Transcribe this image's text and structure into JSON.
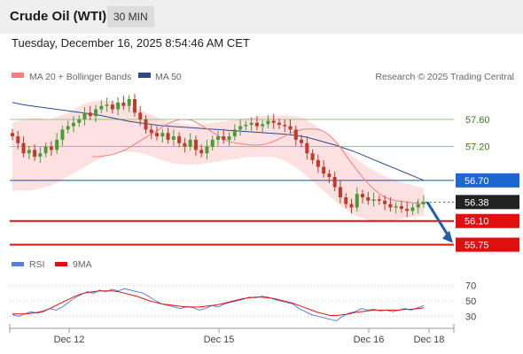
{
  "header": {
    "title": "Crude Oil (WTI)",
    "timeframe": "30 MIN"
  },
  "datetime": "Tuesday, December 16, 2025 8:54:46 AM CET",
  "legend": {
    "ma20_label": "MA 20 + Bollinger Bands",
    "ma50_label": "MA 50",
    "ma20_color": "#f08080",
    "ma50_color": "#2e4a8a",
    "copyright": "Research © 2025 Trading Central"
  },
  "colors": {
    "bullish": "#4a9a3a",
    "bearish": "#c0392b",
    "band_fill": "#fde0e0",
    "resistance_line": "#8cc070",
    "pivot_line": "#1e66d0",
    "support_line": "#e01010",
    "last_price": "#222222",
    "arrow": "#245ea8",
    "rsi_line": "#5b7fd8",
    "rsi_ma_line": "#e01010"
  },
  "chart_data": [
    {
      "type": "candlestick",
      "title": "Crude Oil (WTI)",
      "timeframe": "30 MIN",
      "xlabel": "",
      "ylabel": "",
      "x_ticks": [
        "Dec 12",
        "Dec 15",
        "Dec 16",
        "Dec 18"
      ],
      "ylim": [
        55.6,
        57.9
      ],
      "y_ticks": [
        57.6,
        57.2
      ],
      "levels": [
        {
          "label": "57.60",
          "value": 57.6,
          "kind": "resistance"
        },
        {
          "label": "57.20",
          "value": 57.2,
          "kind": "resistance"
        },
        {
          "label": "56.70",
          "value": 56.7,
          "kind": "pivot"
        },
        {
          "label": "56.38",
          "value": 56.38,
          "kind": "last"
        },
        {
          "label": "56.10",
          "value": 56.1,
          "kind": "support"
        },
        {
          "label": "55.75",
          "value": 55.75,
          "kind": "support"
        }
      ],
      "series": [
        {
          "name": "MA 20 + Bollinger Bands",
          "kind": "ma_bollinger"
        },
        {
          "name": "MA 50",
          "kind": "ma"
        }
      ],
      "closes": [
        57.35,
        57.25,
        57.1,
        57.15,
        57.05,
        57.1,
        57.2,
        57.15,
        57.3,
        57.45,
        57.5,
        57.55,
        57.6,
        57.7,
        57.65,
        57.75,
        57.8,
        57.82,
        57.75,
        57.85,
        57.8,
        57.9,
        57.7,
        57.6,
        57.45,
        57.4,
        57.35,
        57.4,
        57.3,
        57.35,
        57.25,
        57.2,
        57.3,
        57.15,
        57.1,
        57.2,
        57.3,
        57.35,
        57.3,
        57.35,
        57.45,
        57.5,
        57.52,
        57.55,
        57.5,
        57.53,
        57.58,
        57.55,
        57.52,
        57.5,
        57.45,
        57.3,
        57.25,
        57.1,
        57.0,
        56.9,
        56.8,
        56.75,
        56.6,
        56.45,
        56.35,
        56.3,
        56.5,
        56.45,
        56.4,
        56.42,
        56.4,
        56.35,
        56.3,
        56.32,
        56.28,
        56.25,
        56.3,
        56.35,
        56.38
      ],
      "ma20": [
        57.05,
        57.05,
        57.06,
        57.07,
        57.09,
        57.12,
        57.15,
        57.2,
        57.25,
        57.3,
        57.35,
        57.4,
        57.45,
        57.5,
        57.55,
        57.58,
        57.6,
        57.6,
        57.59,
        57.55,
        57.5,
        57.45,
        57.4,
        57.35,
        57.3,
        57.27,
        57.25,
        57.24,
        57.23,
        57.22,
        57.22,
        57.23,
        57.25,
        57.28,
        57.32,
        57.36,
        57.4,
        57.43,
        57.45,
        57.46,
        57.46,
        57.45,
        57.42,
        57.36,
        57.28,
        57.18,
        57.06,
        56.95,
        56.84,
        56.74,
        56.65,
        56.57,
        56.5,
        56.45,
        56.42,
        56.4,
        56.39,
        56.38,
        56.37,
        56.36,
        56.35
      ],
      "ma50": [
        57.85,
        57.82,
        57.8,
        57.78,
        57.76,
        57.74,
        57.72,
        57.7,
        57.68,
        57.66,
        57.63,
        57.6,
        57.57,
        57.55,
        57.53,
        57.51,
        57.5,
        57.49,
        57.48,
        57.47,
        57.46,
        57.45,
        57.44,
        57.43,
        57.42,
        57.41,
        57.4,
        57.39,
        57.38,
        57.36,
        57.34,
        57.3,
        57.26,
        57.22,
        57.17,
        57.12,
        57.06,
        57.0,
        56.94,
        56.88,
        56.82,
        56.76,
        56.7
      ],
      "band_upper": [
        57.55,
        57.6,
        57.62,
        57.62,
        57.6,
        57.65,
        57.7,
        57.78,
        57.85,
        57.88,
        57.88,
        57.86,
        57.82,
        57.78,
        57.72,
        57.66,
        57.6,
        57.56,
        57.54,
        57.52,
        57.52,
        57.54,
        57.56,
        57.58,
        57.6,
        57.62,
        57.64,
        57.66,
        57.66,
        57.66,
        57.65,
        57.63,
        57.55,
        57.45,
        57.35,
        57.22,
        57.1,
        57.0,
        56.9,
        56.82,
        56.75,
        56.7,
        56.66,
        56.62,
        56.58
      ],
      "band_lower": [
        56.55,
        56.55,
        56.55,
        56.58,
        56.62,
        56.68,
        56.76,
        56.84,
        56.92,
        57.0,
        57.06,
        57.1,
        57.12,
        57.12,
        57.1,
        57.05,
        57.0,
        56.96,
        56.94,
        56.93,
        56.94,
        56.96,
        56.98,
        57.0,
        57.02,
        57.04,
        57.05,
        57.05,
        57.04,
        57.0,
        56.92,
        56.82,
        56.7,
        56.58,
        56.46,
        56.34,
        56.24,
        56.16,
        56.12,
        56.1,
        56.1,
        56.12,
        56.14,
        56.16,
        56.18
      ]
    },
    {
      "type": "line",
      "title": "RSI",
      "xlabel": "",
      "ylabel": "",
      "x_ticks": [
        "Dec 12",
        "Dec 15",
        "Dec 16",
        "Dec 18"
      ],
      "ylim": [
        20,
        80
      ],
      "y_ticks": [
        70,
        50,
        30
      ],
      "series": [
        {
          "name": "RSI",
          "values": [
            32,
            30,
            33,
            36,
            34,
            36,
            40,
            38,
            42,
            48,
            54,
            58,
            62,
            60,
            64,
            62,
            65,
            63,
            66,
            64,
            62,
            60,
            55,
            50,
            46,
            44,
            42,
            40,
            43,
            41,
            38,
            40,
            44,
            42,
            46,
            48,
            50,
            52,
            55,
            54,
            56,
            55,
            52,
            50,
            48,
            46,
            40,
            36,
            32,
            30,
            28,
            26,
            24,
            30,
            34,
            36,
            40,
            38,
            39,
            37,
            38,
            36,
            38,
            40,
            38,
            41,
            44
          ]
        },
        {
          "name": "9MA",
          "values": [
            33,
            33,
            33,
            34,
            35,
            37,
            40,
            44,
            48,
            52,
            56,
            59,
            61,
            62,
            63,
            63,
            63,
            62,
            60,
            58,
            56,
            53,
            50,
            48,
            46,
            45,
            44,
            43,
            42,
            42,
            42,
            43,
            44,
            45,
            47,
            49,
            51,
            53,
            54,
            55,
            55,
            54,
            53,
            51,
            49,
            47,
            44,
            41,
            38,
            35,
            33,
            31,
            31,
            32,
            33,
            35,
            36,
            37,
            38,
            38,
            38,
            38,
            38,
            39,
            39,
            40,
            41
          ]
        }
      ]
    }
  ]
}
